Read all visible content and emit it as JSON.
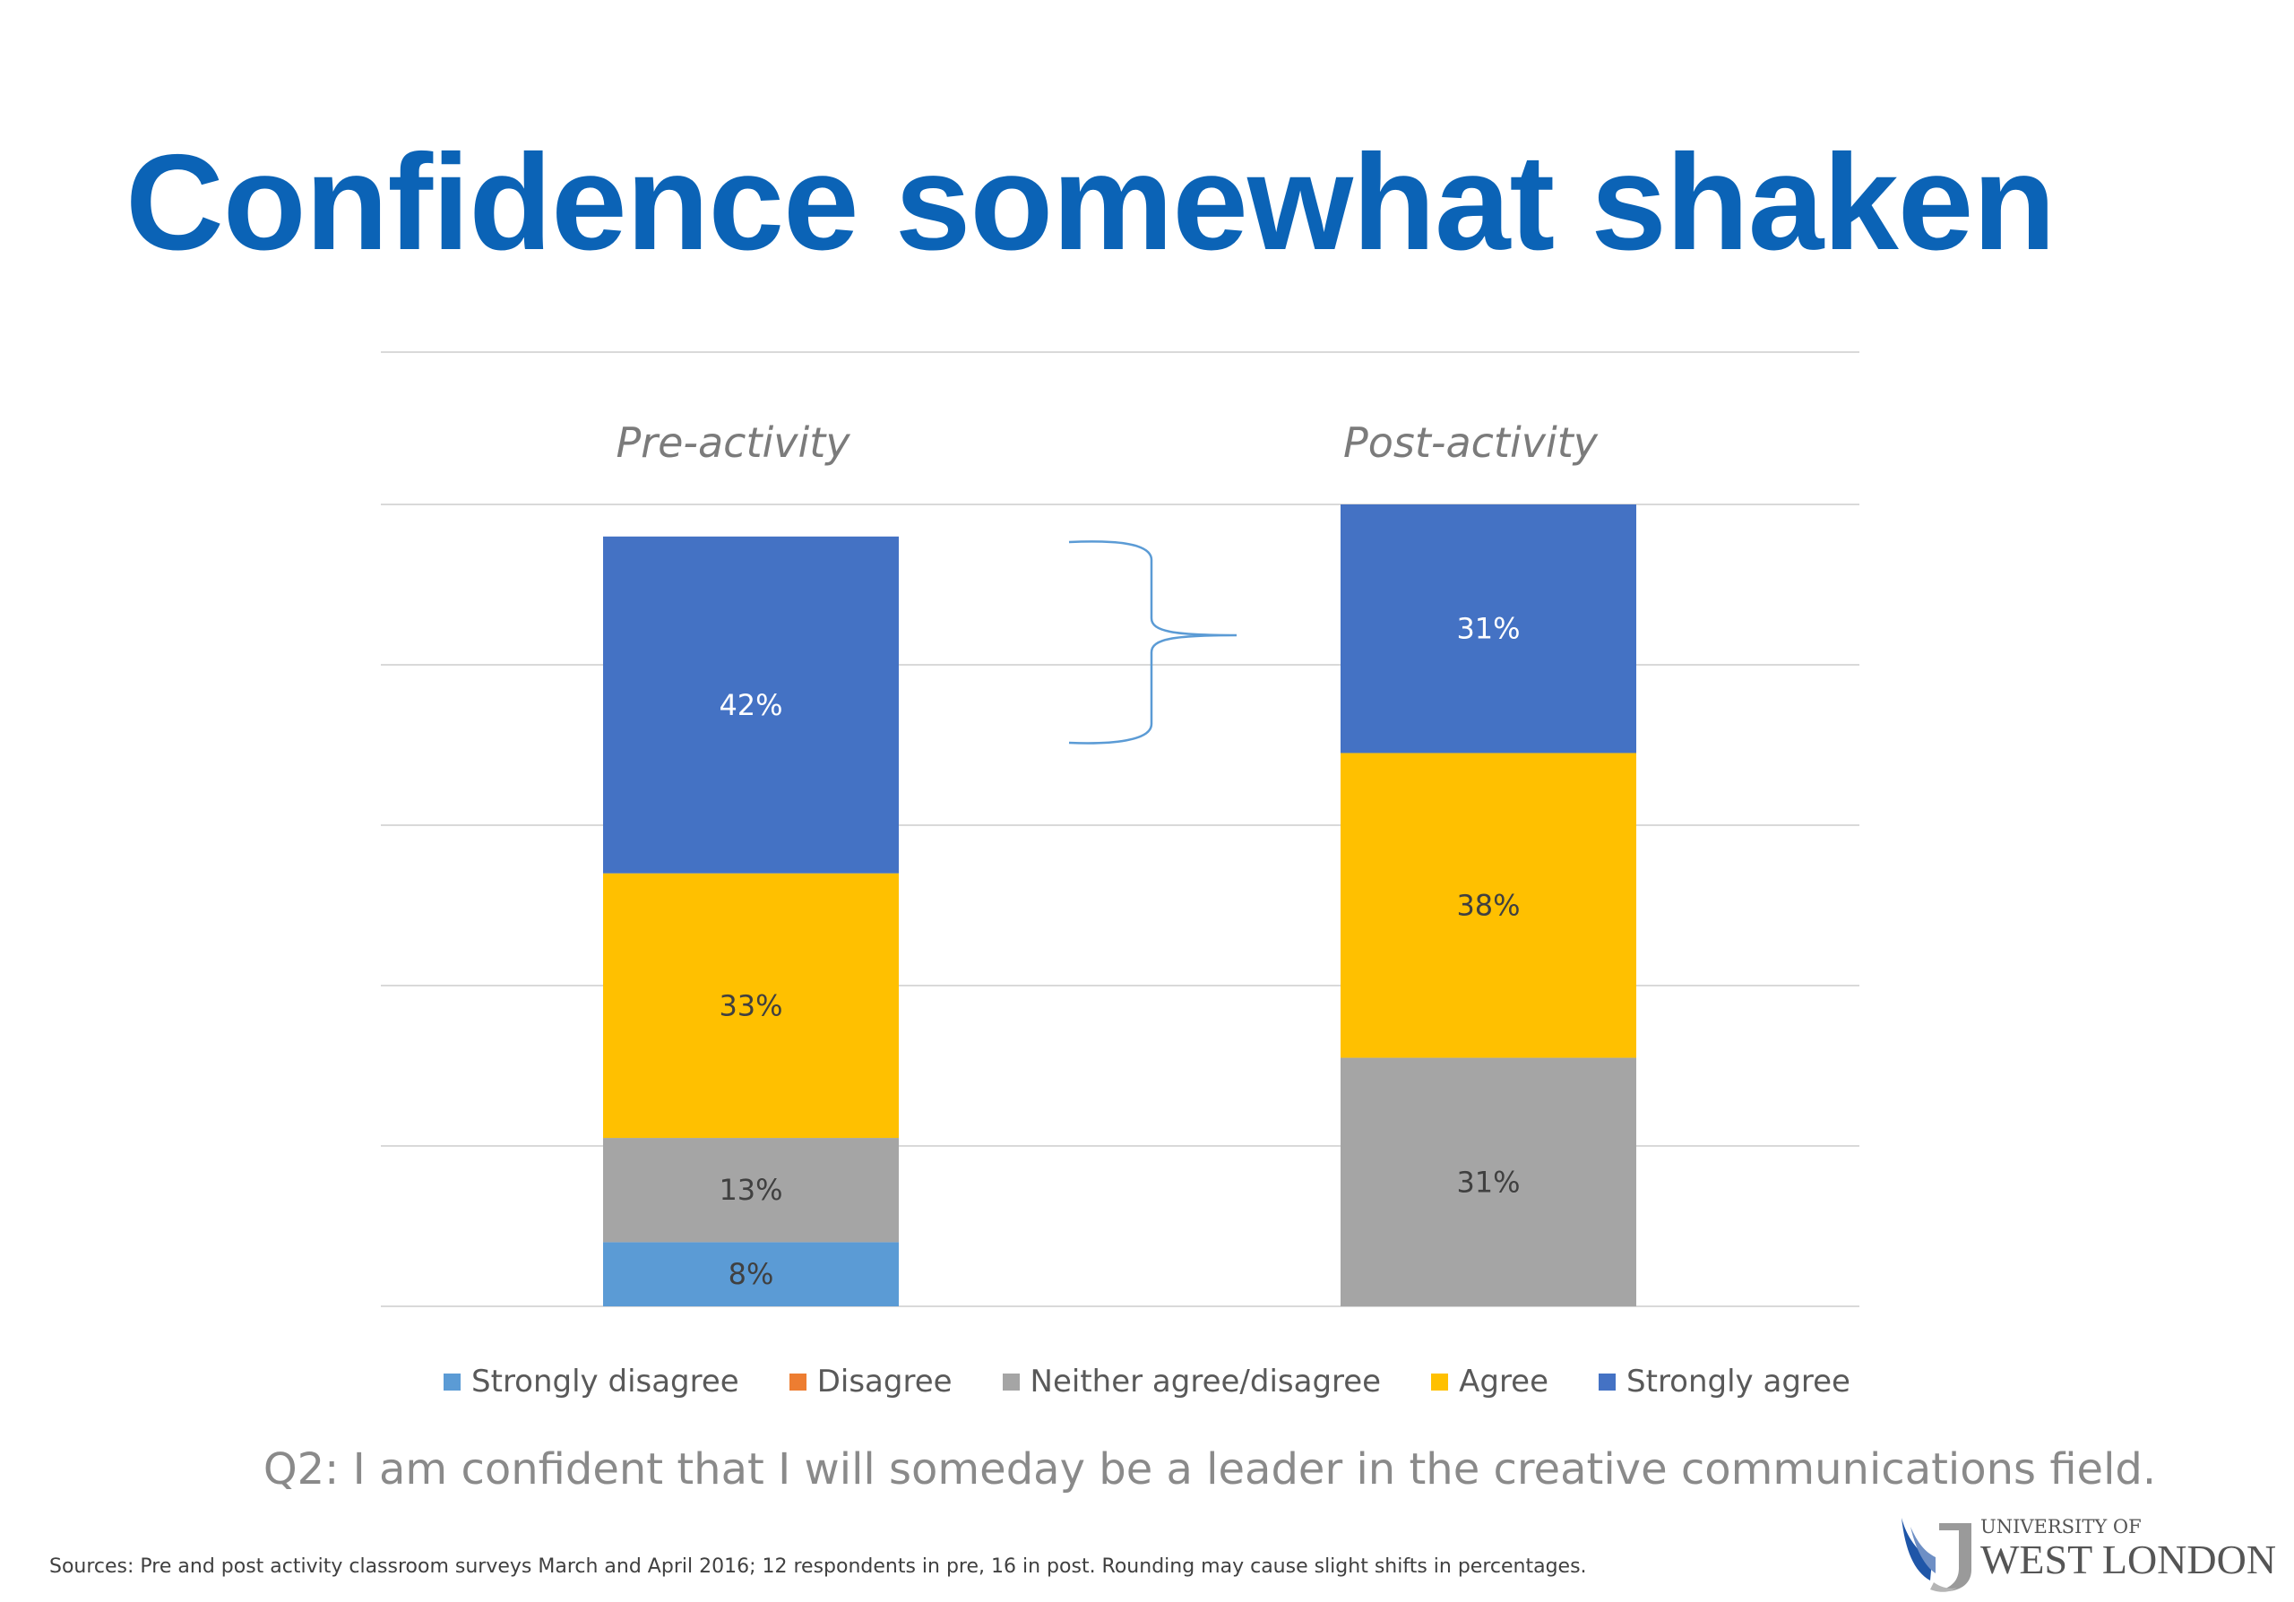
{
  "slide": {
    "title": "Confidence somewhat shaken",
    "question": "Q2: I am confident that I will someday be a leader in the creative communications field.",
    "sources": "Sources: Pre and post activity classroom surveys March and April 2016; 12 respondents in pre, 16 in post. Rounding may cause slight  shifts in percentages."
  },
  "logo": {
    "line1": "UNIVERSITY OF",
    "line2": "WEST LONDON"
  },
  "chart_data": {
    "type": "bar",
    "stacked": true,
    "categories": [
      "Pre-activity",
      "Post-activity"
    ],
    "ylim": [
      0,
      100
    ],
    "grid": true,
    "legend_position": "bottom",
    "series": [
      {
        "name": "Strongly disagree",
        "color": "#5b9bd5",
        "values": [
          8,
          0
        ],
        "labels": [
          "8%",
          ""
        ]
      },
      {
        "name": "Disagree",
        "color": "#ed7d31",
        "values": [
          0,
          0
        ],
        "labels": [
          "",
          ""
        ]
      },
      {
        "name": "Neither agree/disagree",
        "color": "#a5a5a5",
        "values": [
          13,
          31
        ],
        "labels": [
          "13%",
          "31%"
        ]
      },
      {
        "name": "Agree",
        "color": "#ffc000",
        "values": [
          33,
          38
        ],
        "labels": [
          "33%",
          "38%"
        ]
      },
      {
        "name": "Strongly agree",
        "color": "#4472c4",
        "values": [
          42,
          31
        ],
        "labels": [
          "42%",
          "31%"
        ]
      }
    ]
  }
}
